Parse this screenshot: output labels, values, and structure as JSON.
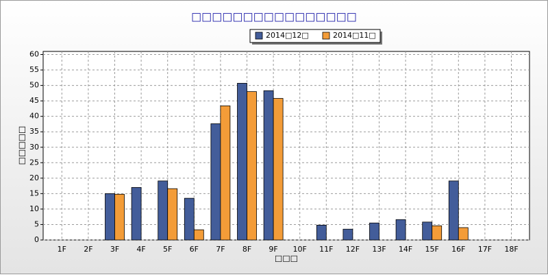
{
  "chart_data": {
    "type": "bar",
    "title": "□□□□□□□□□□□□□□□□",
    "y_label": "□□□□□",
    "x_label": "□□□",
    "categories": [
      "1F",
      "2F",
      "3F",
      "4F",
      "5F",
      "6F",
      "7F",
      "8F",
      "9F",
      "10F",
      "11F",
      "12F",
      "13F",
      "14F",
      "15F",
      "16F",
      "17F",
      "18F"
    ],
    "series": [
      {
        "name": "2014□12□",
        "color": "#435d9a",
        "values": [
          0,
          0,
          15,
          17,
          19.1,
          13.5,
          37.6,
          50.7,
          48.3,
          0,
          4.8,
          3.5,
          5.5,
          6.6,
          5.8,
          19.1,
          0,
          0
        ]
      },
      {
        "name": "2014□11□",
        "color": "#f39c38",
        "values": [
          0,
          0,
          14.8,
          0,
          16.6,
          3.3,
          43.4,
          48,
          45.8,
          0,
          0,
          0,
          0,
          0,
          4.6,
          4,
          0,
          0
        ]
      }
    ],
    "ylim": [
      0,
      61
    ],
    "yticks": [
      0,
      5,
      10,
      15,
      20,
      25,
      30,
      35,
      40,
      45,
      50,
      55,
      60
    ],
    "grid": true
  }
}
